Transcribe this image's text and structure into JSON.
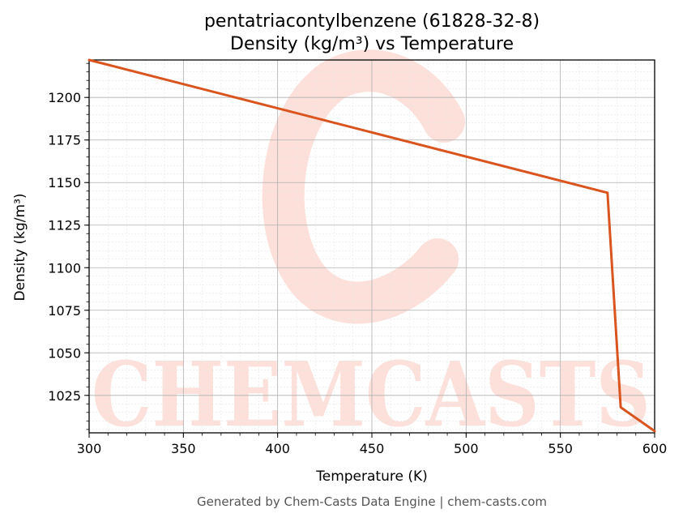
{
  "chart_data": {
    "type": "line",
    "title_line1": "pentatriacontylbenzene (61828-32-8)",
    "title_line2": "Density (kg/m³) vs Temperature",
    "xlabel": "Temperature (K)",
    "ylabel": "Density (kg/m³)",
    "xlim": [
      300,
      600
    ],
    "ylim": [
      1003,
      1222
    ],
    "x_ticks": [
      300,
      350,
      400,
      450,
      500,
      550,
      600
    ],
    "y_ticks": [
      1025,
      1050,
      1075,
      1100,
      1125,
      1150,
      1175,
      1200
    ],
    "grid": true,
    "series": [
      {
        "color": "#d9541e",
        "x": [
          300,
          575,
          582,
          600
        ],
        "y": [
          1222,
          1144,
          1018,
          1004
        ]
      }
    ]
  },
  "watermark": {
    "text": "CHEMCASTS",
    "color": "#fde0da"
  },
  "footer": "Generated by Chem-Casts Data Engine | chem-casts.com"
}
